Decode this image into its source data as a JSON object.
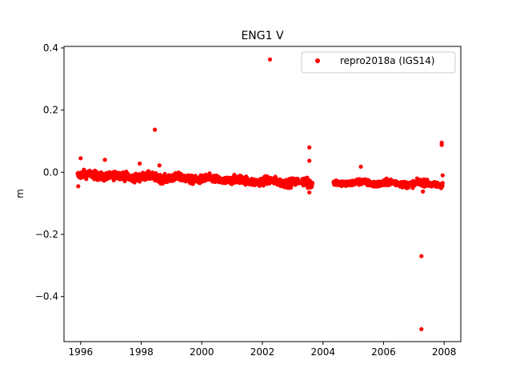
{
  "chart_data": {
    "type": "scatter",
    "title": "ENG1 V",
    "xlabel": "",
    "ylabel": "m",
    "xlim": [
      1995.45,
      2008.55
    ],
    "ylim": [
      -0.545,
      0.405
    ],
    "xticks": [
      1996,
      1998,
      2000,
      2002,
      2004,
      2006,
      2008
    ],
    "xtick_labels": [
      "1996",
      "1998",
      "2000",
      "2002",
      "2004",
      "2006",
      "2008"
    ],
    "yticks": [
      -0.4,
      -0.2,
      0.0,
      0.2,
      0.4
    ],
    "ytick_labels": [
      "−0.4",
      "−0.2",
      "0.0",
      "0.2",
      "0.4"
    ],
    "grid": false,
    "legend_position": "top-right",
    "series": [
      {
        "name": "repro2018a (IGS14)",
        "color": "#ff0000",
        "marker": "circle",
        "segments": [
          {
            "x_start": 1995.9,
            "x_end": 2003.2,
            "center_start": -0.008,
            "center_end": -0.033,
            "noise": 0.009
          },
          {
            "x_start": 2003.3,
            "x_end": 2003.65,
            "center_start": -0.032,
            "center_end": -0.035,
            "noise": 0.01
          },
          {
            "x_start": 2004.35,
            "x_end": 2007.95,
            "center_start": -0.033,
            "center_end": -0.038,
            "noise": 0.007
          }
        ],
        "outliers": [
          {
            "x": 1995.92,
            "y": -0.045
          },
          {
            "x": 1996.0,
            "y": 0.045
          },
          {
            "x": 1996.8,
            "y": 0.04
          },
          {
            "x": 1997.95,
            "y": 0.028
          },
          {
            "x": 1998.45,
            "y": 0.137
          },
          {
            "x": 1998.6,
            "y": 0.022
          },
          {
            "x": 2002.25,
            "y": 0.363
          },
          {
            "x": 2003.55,
            "y": 0.08
          },
          {
            "x": 2003.55,
            "y": 0.037
          },
          {
            "x": 2003.55,
            "y": -0.065
          },
          {
            "x": 2003.5,
            "y": -0.05
          },
          {
            "x": 2005.25,
            "y": 0.018
          },
          {
            "x": 2007.25,
            "y": -0.27
          },
          {
            "x": 2007.25,
            "y": -0.505
          },
          {
            "x": 2007.3,
            "y": -0.062
          },
          {
            "x": 2007.92,
            "y": 0.095
          },
          {
            "x": 2007.92,
            "y": 0.088
          },
          {
            "x": 2007.95,
            "y": -0.01
          }
        ]
      }
    ]
  }
}
